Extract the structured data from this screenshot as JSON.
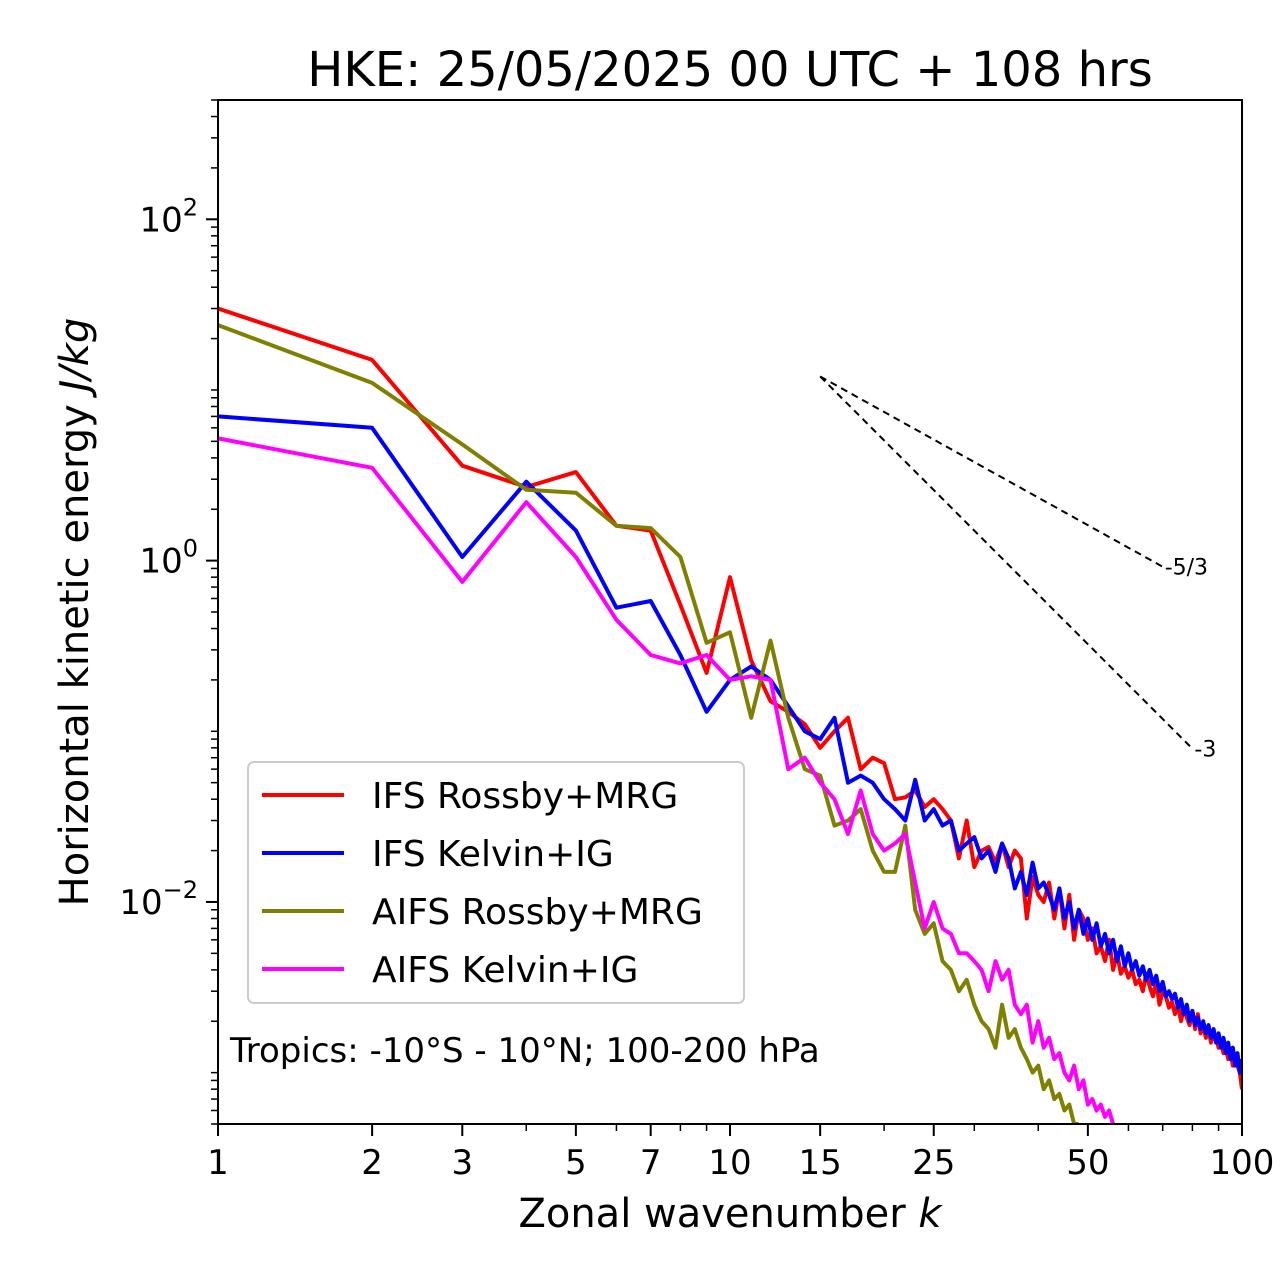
{
  "chart_data": {
    "type": "line",
    "title": "HKE: 25/05/2025 00 UTC + 108 hrs",
    "xlabel_text": "Zonal wavenumber ",
    "xlabel_var": "k",
    "ylabel_text": "Horizontal kinetic energy ",
    "ylabel_unit": "J/kg",
    "x_scale": "log",
    "y_scale": "log",
    "xlim": [
      1,
      100
    ],
    "ylim": [
      0.0005,
      500
    ],
    "x_ticks": [
      1,
      2,
      3,
      5,
      7,
      10,
      15,
      25,
      50,
      100
    ],
    "x_tick_labels": [
      "1",
      "2",
      "3",
      "5",
      "7",
      "10",
      "15",
      "25",
      "50",
      "100"
    ],
    "y_ticks": [
      {
        "value": 0.01,
        "base": "10",
        "exp": "−2"
      },
      {
        "value": 1,
        "base": "10",
        "exp": "0"
      },
      {
        "value": 100,
        "base": "10",
        "exp": "2"
      }
    ],
    "grid": false,
    "legend_position": "lower-left",
    "annotation": "Tropics: -10°S - 10°N; 100-200 hPa",
    "reference_lines": [
      {
        "label": "-5/3",
        "slope": -1.6667,
        "x": [
          15,
          70
        ],
        "y0": 12
      },
      {
        "label": "-3",
        "slope": -3,
        "x": [
          15,
          80
        ],
        "y0": 12
      }
    ],
    "series": [
      {
        "name": "IFS Rossby+MRG",
        "color": "#ff0000",
        "x": [
          1,
          2,
          3,
          4,
          5,
          6,
          7,
          8,
          9,
          10,
          11,
          12,
          13,
          14,
          15,
          16,
          17,
          18,
          19,
          20,
          21,
          22,
          23,
          24,
          25,
          26,
          27,
          28,
          29,
          30,
          31,
          32,
          33,
          34,
          35,
          36,
          37,
          38,
          39,
          40,
          41,
          42,
          43,
          44,
          45,
          46,
          47,
          48,
          49,
          50,
          51,
          52,
          53,
          54,
          55,
          56,
          57,
          58,
          59,
          60,
          61,
          62,
          63,
          64,
          65,
          66,
          67,
          68,
          69,
          70,
          71,
          72,
          73,
          74,
          75,
          76,
          77,
          78,
          79,
          80,
          81,
          82,
          83,
          84,
          85,
          86,
          87,
          88,
          89,
          90,
          91,
          92,
          93,
          94,
          95,
          96,
          97,
          98,
          99,
          100
        ],
        "y": [
          30,
          15,
          3.6,
          2.7,
          3.3,
          1.6,
          1.5,
          0.55,
          0.22,
          0.8,
          0.26,
          0.15,
          0.13,
          0.11,
          0.08,
          0.1,
          0.12,
          0.06,
          0.07,
          0.065,
          0.04,
          0.041,
          0.045,
          0.036,
          0.04,
          0.035,
          0.03,
          0.018,
          0.03,
          0.016,
          0.02,
          0.021,
          0.017,
          0.022,
          0.016,
          0.02,
          0.018,
          0.008,
          0.014,
          0.011,
          0.01,
          0.013,
          0.008,
          0.012,
          0.007,
          0.011,
          0.006,
          0.009,
          0.008,
          0.006,
          0.007,
          0.005,
          0.0055,
          0.0045,
          0.006,
          0.004,
          0.005,
          0.0038,
          0.0042,
          0.0036,
          0.004,
          0.0033,
          0.0035,
          0.003,
          0.0038,
          0.0032,
          0.0028,
          0.0034,
          0.0025,
          0.003,
          0.0028,
          0.0024,
          0.0026,
          0.0022,
          0.0025,
          0.002,
          0.0024,
          0.0021,
          0.0019,
          0.0023,
          0.0018,
          0.0022,
          0.0017,
          0.0019,
          0.0016,
          0.0018,
          0.0015,
          0.0017,
          0.0016,
          0.0014,
          0.0015,
          0.0013,
          0.0014,
          0.0012,
          0.0013,
          0.0011,
          0.0012,
          0.0011,
          0.001,
          0.0008
        ]
      },
      {
        "name": "IFS Kelvin+IG",
        "color": "#0000ff",
        "x": [
          1,
          2,
          3,
          4,
          5,
          6,
          7,
          8,
          9,
          10,
          11,
          12,
          13,
          14,
          15,
          16,
          17,
          18,
          19,
          20,
          21,
          22,
          23,
          24,
          25,
          26,
          27,
          28,
          29,
          30,
          31,
          32,
          33,
          34,
          35,
          36,
          37,
          38,
          39,
          40,
          41,
          42,
          43,
          44,
          45,
          46,
          47,
          48,
          49,
          50,
          51,
          52,
          53,
          54,
          55,
          56,
          57,
          58,
          59,
          60,
          61,
          62,
          63,
          64,
          65,
          66,
          67,
          68,
          69,
          70,
          71,
          72,
          73,
          74,
          75,
          76,
          77,
          78,
          79,
          80,
          81,
          82,
          83,
          84,
          85,
          86,
          87,
          88,
          89,
          90,
          91,
          92,
          93,
          94,
          95,
          96,
          97,
          98,
          99,
          100
        ],
        "y": [
          7,
          6,
          1.05,
          2.9,
          1.5,
          0.53,
          0.58,
          0.28,
          0.13,
          0.2,
          0.24,
          0.2,
          0.14,
          0.1,
          0.09,
          0.12,
          0.05,
          0.055,
          0.05,
          0.04,
          0.035,
          0.03,
          0.052,
          0.03,
          0.035,
          0.028,
          0.03,
          0.02,
          0.022,
          0.024,
          0.018,
          0.02,
          0.015,
          0.022,
          0.018,
          0.012,
          0.015,
          0.011,
          0.017,
          0.012,
          0.013,
          0.011,
          0.009,
          0.012,
          0.008,
          0.01,
          0.007,
          0.009,
          0.0065,
          0.008,
          0.006,
          0.0075,
          0.0055,
          0.0065,
          0.005,
          0.006,
          0.0045,
          0.0055,
          0.0042,
          0.005,
          0.004,
          0.0045,
          0.0037,
          0.0042,
          0.0035,
          0.004,
          0.0033,
          0.0037,
          0.003,
          0.0034,
          0.0028,
          0.003,
          0.0027,
          0.0029,
          0.0024,
          0.0027,
          0.0022,
          0.0025,
          0.002,
          0.0023,
          0.0019,
          0.0021,
          0.0018,
          0.002,
          0.0017,
          0.0019,
          0.0016,
          0.0018,
          0.0015,
          0.0017,
          0.0014,
          0.0016,
          0.0013,
          0.0015,
          0.0012,
          0.0014,
          0.0011,
          0.0013,
          0.001,
          0.0012
        ]
      },
      {
        "name": "AIFS Rossby+MRG",
        "color": "#808000",
        "x": [
          1,
          2,
          3,
          4,
          5,
          6,
          7,
          8,
          9,
          10,
          11,
          12,
          13,
          14,
          15,
          16,
          17,
          18,
          19,
          20,
          21,
          22,
          23,
          24,
          25,
          26,
          27,
          28,
          29,
          30,
          31,
          32,
          33,
          34,
          35,
          36,
          37,
          38,
          39,
          40,
          41,
          42,
          43,
          44,
          45,
          46,
          47,
          48
        ],
        "y": [
          24,
          11,
          4.8,
          2.6,
          2.5,
          1.6,
          1.55,
          1.05,
          0.33,
          0.38,
          0.12,
          0.34,
          0.12,
          0.06,
          0.055,
          0.028,
          0.03,
          0.035,
          0.02,
          0.015,
          0.015,
          0.028,
          0.009,
          0.0065,
          0.0075,
          0.0045,
          0.004,
          0.003,
          0.0035,
          0.0025,
          0.002,
          0.0018,
          0.0014,
          0.0025,
          0.0016,
          0.0018,
          0.0014,
          0.0012,
          0.001,
          0.0011,
          0.0008,
          0.0009,
          0.0007,
          0.00075,
          0.0006,
          0.00065,
          0.0005,
          0.0005
        ]
      },
      {
        "name": "AIFS Kelvin+IG",
        "color": "#ff00ff",
        "x": [
          1,
          2,
          3,
          4,
          5,
          6,
          7,
          8,
          9,
          10,
          11,
          12,
          13,
          14,
          15,
          16,
          17,
          18,
          19,
          20,
          21,
          22,
          23,
          24,
          25,
          26,
          27,
          28,
          29,
          30,
          31,
          32,
          33,
          34,
          35,
          36,
          37,
          38,
          39,
          40,
          41,
          42,
          43,
          44,
          45,
          46,
          47,
          48,
          49,
          50,
          51,
          52,
          53,
          54,
          55,
          56
        ],
        "y": [
          5.2,
          3.5,
          0.75,
          2.2,
          1.05,
          0.45,
          0.28,
          0.25,
          0.28,
          0.2,
          0.21,
          0.2,
          0.06,
          0.07,
          0.05,
          0.04,
          0.025,
          0.045,
          0.025,
          0.02,
          0.022,
          0.025,
          0.013,
          0.007,
          0.01,
          0.007,
          0.0065,
          0.005,
          0.005,
          0.0045,
          0.004,
          0.003,
          0.0045,
          0.0035,
          0.004,
          0.0025,
          0.0022,
          0.0025,
          0.0015,
          0.002,
          0.0014,
          0.0016,
          0.0012,
          0.0013,
          0.001,
          0.0009,
          0.0011,
          0.0008,
          0.0009,
          0.00065,
          0.0007,
          0.0006,
          0.00065,
          0.00055,
          0.0006,
          0.0005
        ]
      }
    ]
  }
}
